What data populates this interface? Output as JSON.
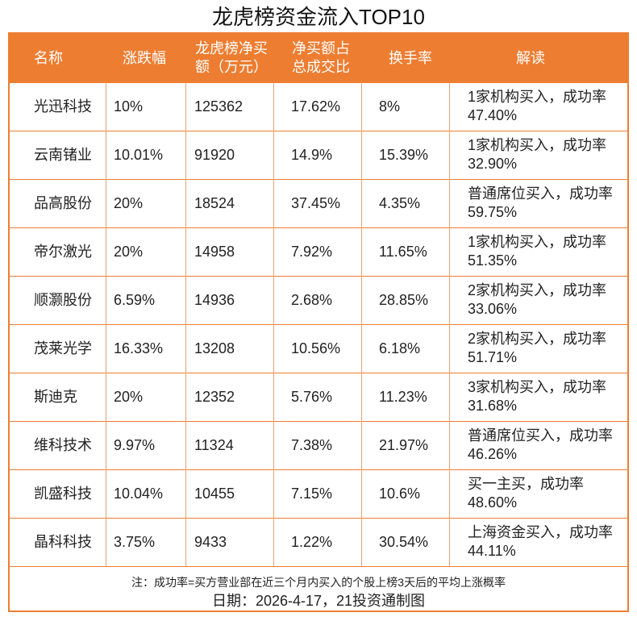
{
  "title": "龙虎榜资金流入TOP10",
  "headers": [
    "名称",
    "涨跌幅",
    "龙虎榜净买额（万元）",
    "净买额占总成交比",
    "换手率",
    "解读"
  ],
  "header_lines": {
    "col2": [
      "龙虎榜净买",
      "额（万元）"
    ],
    "col3": [
      "净买额占",
      "总成交比"
    ]
  },
  "rows": [
    {
      "name": "光迅科技",
      "change": "10%",
      "net_buy": "125362",
      "ratio": "17.62%",
      "turnover": "8%",
      "note": "1家机构买入，成功率47.40%"
    },
    {
      "name": "云南锗业",
      "change": "10.01%",
      "net_buy": "91920",
      "ratio": "14.9%",
      "turnover": "15.39%",
      "note": "1家机构买入，成功率32.90%"
    },
    {
      "name": "品高股份",
      "change": "20%",
      "net_buy": "18524",
      "ratio": "37.45%",
      "turnover": "4.35%",
      "note": "普通席位买入，成功率59.75%"
    },
    {
      "name": "帝尔激光",
      "change": "20%",
      "net_buy": "14958",
      "ratio": "7.92%",
      "turnover": "11.65%",
      "note": "1家机构买入，成功率51.35%"
    },
    {
      "name": "顺灏股份",
      "change": "6.59%",
      "net_buy": "14936",
      "ratio": "2.68%",
      "turnover": "28.85%",
      "note": "2家机构买入，成功率33.06%"
    },
    {
      "name": "茂莱光学",
      "change": "16.33%",
      "net_buy": "13208",
      "ratio": "10.56%",
      "turnover": "6.18%",
      "note": "2家机构买入，成功率51.71%"
    },
    {
      "name": "斯迪克",
      "change": "20%",
      "net_buy": "12352",
      "ratio": "5.76%",
      "turnover": "11.23%",
      "note": "3家机构买入，成功率31.68%"
    },
    {
      "name": "维科技术",
      "change": "9.97%",
      "net_buy": "11324",
      "ratio": "7.38%",
      "turnover": "21.97%",
      "note": "普通席位买入，成功率46.26%"
    },
    {
      "name": "凯盛科技",
      "change": "10.04%",
      "net_buy": "10455",
      "ratio": "7.15%",
      "turnover": "10.6%",
      "note": "买一主买，成功率48.60%"
    },
    {
      "name": "晶科科技",
      "change": "3.75%",
      "net_buy": "9433",
      "ratio": "1.22%",
      "turnover": "30.54%",
      "note": "上海资金买入，成功率44.11%"
    }
  ],
  "footer": {
    "note": "注：成功率=买方营业部在近三个月内买入的个股上榜3天后的平均上涨概率",
    "date": "日期：2026-4-17，21投资通制图"
  },
  "colors": {
    "accent": "#ED7D31"
  }
}
